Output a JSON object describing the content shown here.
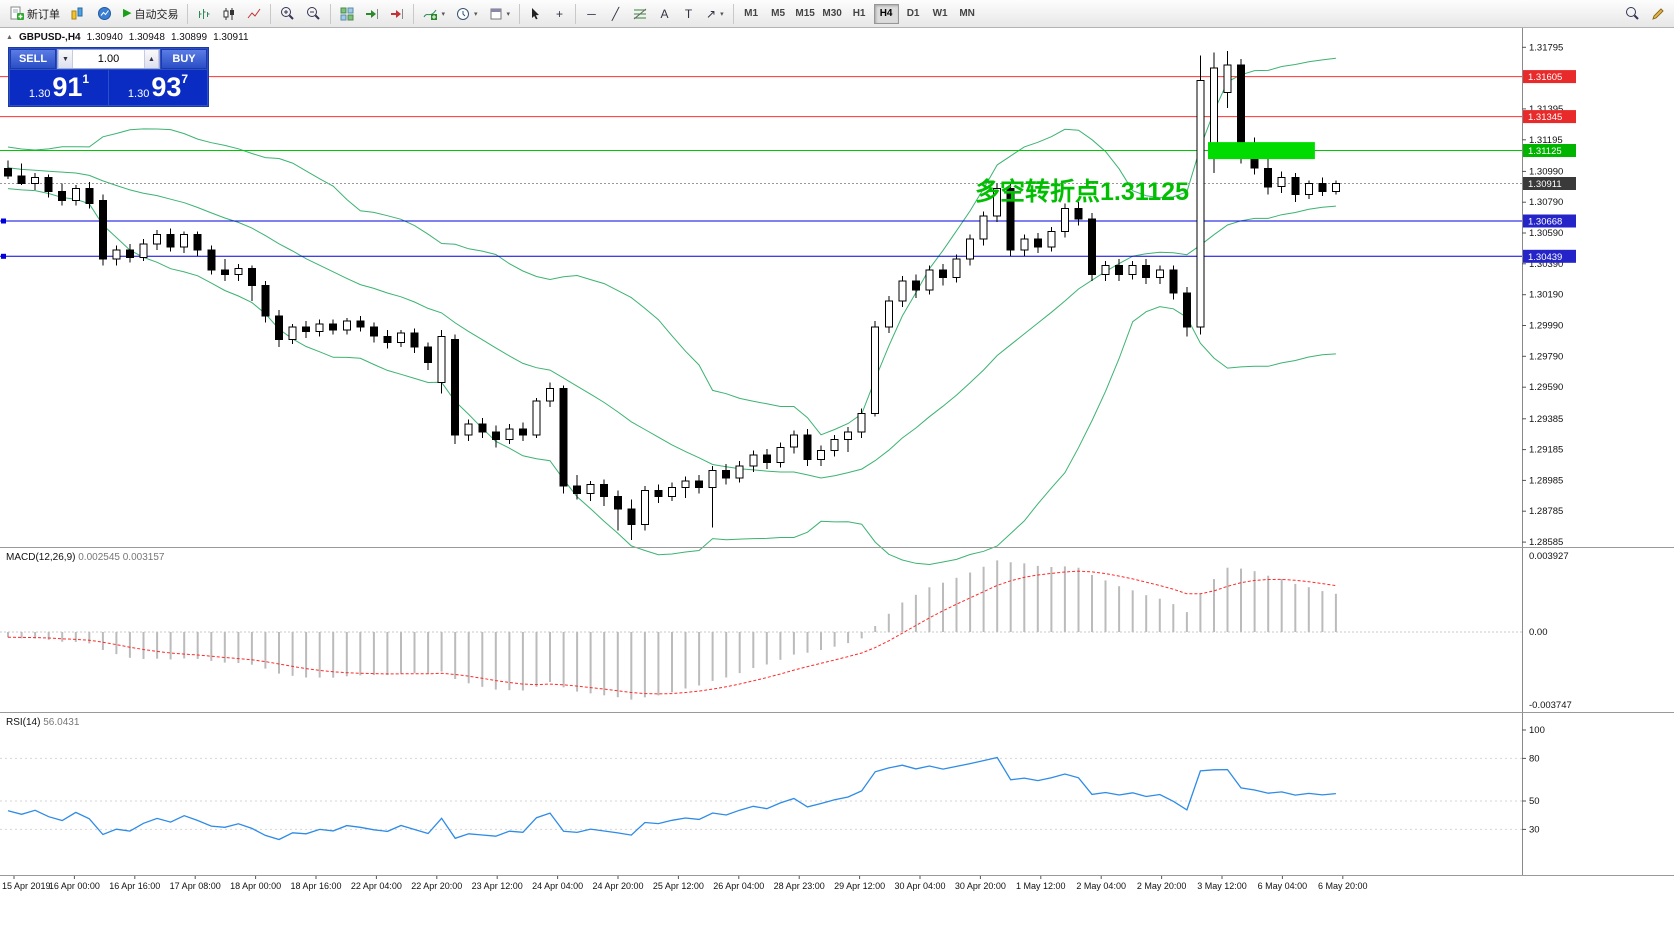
{
  "icons": {
    "auto_trading_play": "▶",
    "cursor": "↖",
    "crosshair": "+",
    "horizontal_line": "─",
    "trendline": "╱",
    "text": "A",
    "text_label": "T",
    "arrow": "↗",
    "dropdown": "▾",
    "volume_down": "▼",
    "volume_up": "▲",
    "collapse": "▲"
  },
  "toolbar": {
    "new_order_label": "新订单",
    "auto_trading_label": "自动交易",
    "timeframes": [
      "M1",
      "M5",
      "M15",
      "M30",
      "H1",
      "H4",
      "D1",
      "W1",
      "MN"
    ],
    "active_timeframe": "H4"
  },
  "chart": {
    "title": {
      "symbol": "GBPUSD-,H4",
      "open": "1.30940",
      "high": "1.30948",
      "low": "1.30899",
      "close": "1.30911"
    },
    "trade_panel": {
      "sell_label": "SELL",
      "buy_label": "BUY",
      "volume": "1.00",
      "sell_price_small": "1.30",
      "sell_price_big": "91",
      "sell_price_sup": "1",
      "buy_price_small": "1.30",
      "buy_price_big": "93",
      "buy_price_sup": "7"
    },
    "annotation": {
      "text": "多空转折点1.31125",
      "color": "#00BE00"
    }
  },
  "chart_data": {
    "type": "candlestick",
    "symbol": "GBPUSD",
    "timeframe": "H4",
    "price_axis": {
      "ylim": [
        1.28553,
        1.3192
      ],
      "ticks": [
        "1.31795",
        "1.31395",
        "1.31195",
        "1.30990",
        "1.30790",
        "1.30590",
        "1.30390",
        "1.30190",
        "1.29990",
        "1.29790",
        "1.29590",
        "1.29385",
        "1.29185",
        "1.28985",
        "1.28785",
        "1.28585"
      ]
    },
    "price_tags": [
      {
        "value": "1.31605",
        "price": 1.31605,
        "bg": "#E82A2A"
      },
      {
        "value": "1.31345",
        "price": 1.31345,
        "bg": "#E82A2A"
      },
      {
        "value": "1.31125",
        "price": 1.31125,
        "bg": "#00B400"
      },
      {
        "value": "1.30911",
        "price": 1.30911,
        "bg": "#3A3A3A"
      },
      {
        "value": "1.30668",
        "price": 1.30668,
        "bg": "#2424C8"
      },
      {
        "value": "1.30439",
        "price": 1.30439,
        "bg": "#2424C8"
      }
    ],
    "hlines": [
      {
        "price": 1.31605,
        "color": "#FF3030"
      },
      {
        "price": 1.31345,
        "color": "#FF3030"
      },
      {
        "price": 1.31125,
        "color": "#00C800"
      },
      {
        "price": 1.30668,
        "color": "#0000DC",
        "handles": true
      },
      {
        "price": 1.30439,
        "color": "#0000DC",
        "handles": true
      },
      {
        "price": 1.30911,
        "color": "#999999",
        "current": true
      }
    ],
    "rectangle": {
      "from": 89,
      "to": 96,
      "top": 1.3118,
      "bottom": 1.3107,
      "color": "#00DC00"
    },
    "time_labels": [
      "15 Apr 2019",
      "16 Apr 00:00",
      "16 Apr 16:00",
      "17 Apr 08:00",
      "18 Apr 00:00",
      "18 Apr 16:00",
      "22 Apr 04:00",
      "22 Apr 20:00",
      "23 Apr 12:00",
      "24 Apr 04:00",
      "24 Apr 20:00",
      "25 Apr 12:00",
      "26 Apr 04:00",
      "28 Apr 23:00",
      "29 Apr 12:00",
      "30 Apr 04:00",
      "30 Apr 20:00",
      "1 May 12:00",
      "2 May 04:00",
      "2 May 20:00",
      "3 May 12:00",
      "6 May 04:00",
      "6 May 20:00"
    ],
    "warmup_closes": [
      1.3112,
      1.3106,
      1.3098,
      1.3092,
      1.31,
      1.3108,
      1.3114,
      1.3108,
      1.31,
      1.3094,
      1.309,
      1.3096,
      1.3104,
      1.311,
      1.3105,
      1.3098,
      1.3093,
      1.3099,
      1.3103
    ],
    "candles": [
      [
        1.3101,
        1.3106,
        1.3094,
        1.3096
      ],
      [
        1.3096,
        1.3104,
        1.309,
        1.3091
      ],
      [
        1.3091,
        1.3098,
        1.3087,
        1.3095
      ],
      [
        1.3095,
        1.3097,
        1.3082,
        1.3086
      ],
      [
        1.3086,
        1.3091,
        1.3077,
        1.308
      ],
      [
        1.308,
        1.309,
        1.3077,
        1.3088
      ],
      [
        1.3088,
        1.3092,
        1.3075,
        1.3078
      ],
      [
        1.308,
        1.3084,
        1.3038,
        1.3042
      ],
      [
        1.3042,
        1.3051,
        1.3038,
        1.3048
      ],
      [
        1.3048,
        1.3052,
        1.304,
        1.3043
      ],
      [
        1.3043,
        1.3055,
        1.3041,
        1.3052
      ],
      [
        1.3052,
        1.3061,
        1.3048,
        1.3058
      ],
      [
        1.3058,
        1.3062,
        1.3047,
        1.305
      ],
      [
        1.305,
        1.306,
        1.3046,
        1.3058
      ],
      [
        1.3058,
        1.306,
        1.3044,
        1.3048
      ],
      [
        1.3048,
        1.3051,
        1.3032,
        1.3035
      ],
      [
        1.3035,
        1.3042,
        1.3028,
        1.3032
      ],
      [
        1.3032,
        1.3039,
        1.3028,
        1.3036
      ],
      [
        1.3036,
        1.3038,
        1.3015,
        1.3025
      ],
      [
        1.3025,
        1.3028,
        1.3001,
        1.3005
      ],
      [
        1.3005,
        1.3009,
        1.2985,
        1.299
      ],
      [
        1.299,
        1.3,
        1.2987,
        1.2998
      ],
      [
        1.2998,
        1.3002,
        1.2991,
        1.2995
      ],
      [
        1.2995,
        1.3003,
        1.2992,
        1.3
      ],
      [
        1.3,
        1.3003,
        1.2993,
        1.2996
      ],
      [
        1.2996,
        1.3004,
        1.2993,
        1.3002
      ],
      [
        1.3002,
        1.3005,
        1.2995,
        1.2998
      ],
      [
        1.2998,
        1.3001,
        1.2988,
        1.2992
      ],
      [
        1.2992,
        1.2996,
        1.2984,
        1.2988
      ],
      [
        1.2988,
        1.2996,
        1.2985,
        1.2994
      ],
      [
        1.2994,
        1.2997,
        1.2981,
        1.2985
      ],
      [
        1.2985,
        1.2988,
        1.297,
        1.2975
      ],
      [
        1.2962,
        1.2996,
        1.2955,
        1.2992
      ],
      [
        1.299,
        1.2993,
        1.2922,
        1.2928
      ],
      [
        1.2928,
        1.2938,
        1.2924,
        1.2935
      ],
      [
        1.2935,
        1.2939,
        1.2926,
        1.293
      ],
      [
        1.293,
        1.2934,
        1.292,
        1.2925
      ],
      [
        1.2925,
        1.2935,
        1.2922,
        1.2932
      ],
      [
        1.2932,
        1.2936,
        1.2924,
        1.2928
      ],
      [
        1.2928,
        1.2952,
        1.2926,
        1.295
      ],
      [
        1.295,
        1.2962,
        1.2946,
        1.2958
      ],
      [
        1.2958,
        1.296,
        1.289,
        1.2895
      ],
      [
        1.2895,
        1.2902,
        1.2886,
        1.289
      ],
      [
        1.289,
        1.2898,
        1.2885,
        1.2896
      ],
      [
        1.2896,
        1.2899,
        1.2882,
        1.2888
      ],
      [
        1.2888,
        1.2892,
        1.2866,
        1.288
      ],
      [
        1.288,
        1.2886,
        1.286,
        1.287
      ],
      [
        1.287,
        1.2895,
        1.2866,
        1.2892
      ],
      [
        1.2892,
        1.2896,
        1.2884,
        1.2888
      ],
      [
        1.2888,
        1.2897,
        1.2885,
        1.2894
      ],
      [
        1.2894,
        1.2901,
        1.2887,
        1.2898
      ],
      [
        1.2898,
        1.2902,
        1.289,
        1.2894
      ],
      [
        1.2894,
        1.2908,
        1.2868,
        1.2905
      ],
      [
        1.2905,
        1.2909,
        1.2896,
        1.29
      ],
      [
        1.29,
        1.2911,
        1.2897,
        1.2908
      ],
      [
        1.2908,
        1.2918,
        1.2904,
        1.2915
      ],
      [
        1.2915,
        1.2919,
        1.2906,
        1.291
      ],
      [
        1.291,
        1.2923,
        1.2907,
        1.292
      ],
      [
        1.292,
        1.2931,
        1.2916,
        1.2928
      ],
      [
        1.2928,
        1.2932,
        1.2908,
        1.2912
      ],
      [
        1.2912,
        1.2921,
        1.2908,
        1.2918
      ],
      [
        1.2918,
        1.2928,
        1.2914,
        1.2925
      ],
      [
        1.2925,
        1.2933,
        1.2917,
        1.293
      ],
      [
        1.293,
        1.2945,
        1.2926,
        1.2942
      ],
      [
        1.2942,
        1.3002,
        1.294,
        1.2998
      ],
      [
        1.2998,
        1.3018,
        1.2994,
        1.3015
      ],
      [
        1.3015,
        1.3031,
        1.3011,
        1.3028
      ],
      [
        1.3028,
        1.3032,
        1.3017,
        1.3022
      ],
      [
        1.3022,
        1.3038,
        1.3019,
        1.3035
      ],
      [
        1.3035,
        1.3039,
        1.3025,
        1.303
      ],
      [
        1.303,
        1.3045,
        1.3027,
        1.3042
      ],
      [
        1.3042,
        1.3058,
        1.3038,
        1.3055
      ],
      [
        1.3055,
        1.3073,
        1.3051,
        1.307
      ],
      [
        1.307,
        1.3091,
        1.3066,
        1.3088
      ],
      [
        1.3088,
        1.3092,
        1.3044,
        1.3048
      ],
      [
        1.3048,
        1.3058,
        1.3044,
        1.3055
      ],
      [
        1.3055,
        1.3059,
        1.3046,
        1.305
      ],
      [
        1.305,
        1.3063,
        1.3047,
        1.306
      ],
      [
        1.306,
        1.3078,
        1.3056,
        1.3075
      ],
      [
        1.3075,
        1.3079,
        1.3064,
        1.3068
      ],
      [
        1.3068,
        1.3072,
        1.3028,
        1.3032
      ],
      [
        1.3032,
        1.3041,
        1.3028,
        1.3038
      ],
      [
        1.3038,
        1.3042,
        1.3028,
        1.3032
      ],
      [
        1.3032,
        1.3041,
        1.3029,
        1.3038
      ],
      [
        1.3038,
        1.3042,
        1.3026,
        1.303
      ],
      [
        1.303,
        1.3038,
        1.3026,
        1.3035
      ],
      [
        1.3035,
        1.3038,
        1.3016,
        1.302
      ],
      [
        1.302,
        1.3024,
        1.2992,
        1.2998
      ],
      [
        1.2998,
        1.3174,
        1.2993,
        1.3158
      ],
      [
        1.3108,
        1.3176,
        1.3098,
        1.3166
      ],
      [
        1.315,
        1.3177,
        1.314,
        1.3168
      ],
      [
        1.3168,
        1.3172,
        1.3104,
        1.3109
      ],
      [
        1.3109,
        1.3121,
        1.3097,
        1.3101
      ],
      [
        1.3101,
        1.3108,
        1.3084,
        1.3089
      ],
      [
        1.3089,
        1.3099,
        1.3085,
        1.3095
      ],
      [
        1.3095,
        1.3098,
        1.3079,
        1.3084
      ],
      [
        1.3084,
        1.3093,
        1.3081,
        1.3091
      ],
      [
        1.3091,
        1.3095,
        1.3083,
        1.3086
      ],
      [
        1.3086,
        1.3093,
        1.3084,
        1.30911
      ]
    ],
    "indicators": {
      "bollinger": {
        "period": 20,
        "deviation": 2,
        "color": "#3CB371"
      },
      "macd": {
        "label": "MACD(12,26,9)",
        "values": [
          "0.002545",
          "0.003157"
        ],
        "axis": [
          "0.003927",
          "0.00",
          "-0.003747"
        ],
        "hist_color": "#BBBBBB",
        "signal_color": "#FF2A2A"
      },
      "rsi": {
        "label": "RSI(14)",
        "value": "56.0431",
        "axis": [
          100,
          80,
          50,
          30
        ],
        "color": "#2E8BE6"
      }
    }
  }
}
